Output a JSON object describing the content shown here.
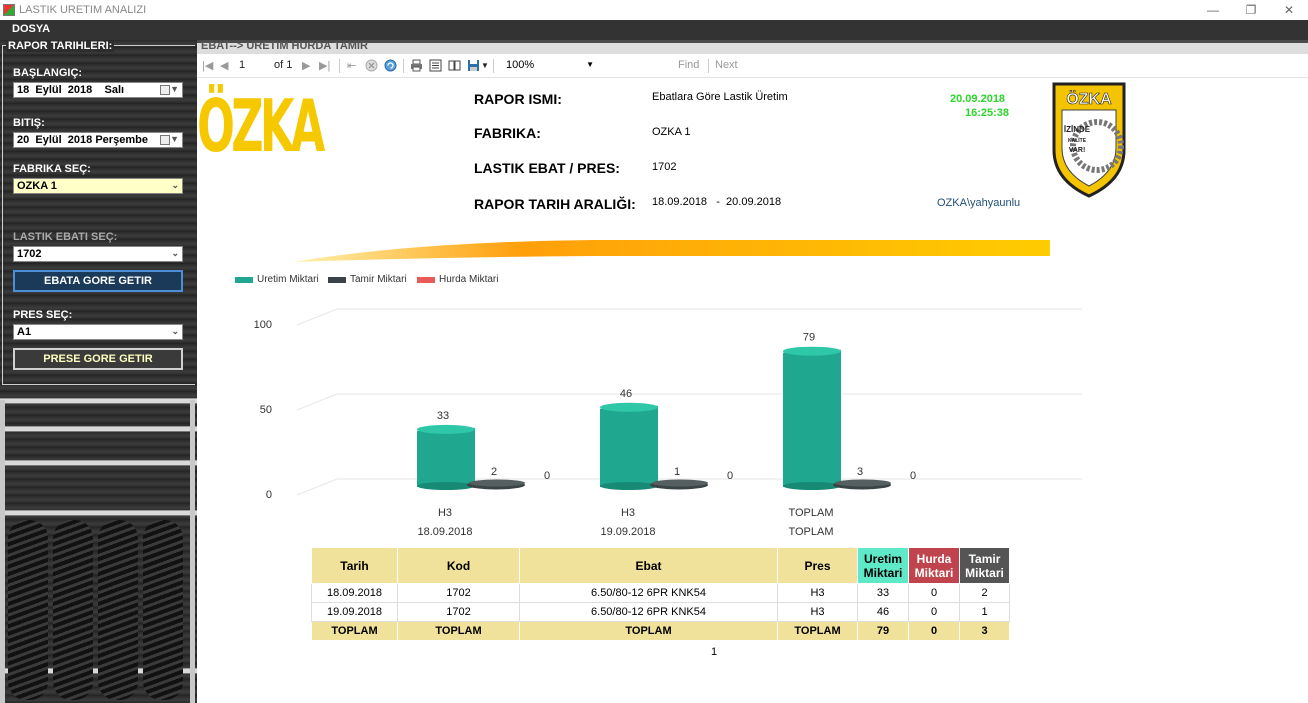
{
  "window": {
    "title": "LASTIK URETIM ANALIZI"
  },
  "menu": {
    "file": "DOSYA"
  },
  "sidebar": {
    "group_title": "RAPOR TARIHLERI:",
    "start_label": "BAŞLANGIÇ:",
    "start_date": {
      "day": "18",
      "month": "Eylül",
      "year": "2018",
      "weekday": "Salı"
    },
    "end_label": "BITIŞ:",
    "end_date": {
      "day": "20",
      "month": "Eylül",
      "year": "2018",
      "weekday": "Perşembe"
    },
    "factory_label": "FABRIKA SEÇ:",
    "factory_value": "OZKA 1",
    "size_label": "LASTIK EBATI SEÇ:",
    "size_value": "1702",
    "size_button": "EBATA GORE GETIR",
    "press_label": "PRES SEÇ:",
    "press_value": "A1",
    "press_button": "PRESE GORE GETIR"
  },
  "viewer": {
    "tab_title": "EBAT--> URETIM HURDA TAMIR",
    "page_current": "1",
    "page_of": "of 1",
    "zoom": "100%",
    "find": "Find",
    "next": "Next"
  },
  "report": {
    "logo_text": "ÖZKA",
    "badge": {
      "brand": "ÖZKA",
      "line1": "İZİNDE",
      "line2": "KALİTE",
      "line3": "VAR!"
    },
    "name_label": "RAPOR ISMI:",
    "name_value": "Ebatlara Göre Lastik Üretim",
    "factory_label": "FABRIKA:",
    "factory_value": "OZKA 1",
    "size_label": "LASTIK EBAT / PRES:",
    "size_value": "1702",
    "range_label": "RAPOR TARIH ARALIĞI:",
    "range_start": "18.09.2018",
    "range_sep": "-",
    "range_end": "20.09.2018",
    "print_date": "20.09.2018",
    "print_time": "16:25:38",
    "user": "OZKA\\yahyaunlu",
    "page_number": "1"
  },
  "colors": {
    "uretim": "#1fa88f",
    "tamir": "#3a4446",
    "hurda": "#e85b57"
  },
  "chart_data": {
    "type": "bar",
    "categories": [
      "H3\n18.09.2018",
      "H3\n19.09.2018",
      "TOPLAM\nTOPLAM"
    ],
    "category_lines": [
      [
        "H3",
        "18.09.2018"
      ],
      [
        "H3",
        "19.09.2018"
      ],
      [
        "TOPLAM",
        "TOPLAM"
      ]
    ],
    "series": [
      {
        "name": "Uretim Miktari",
        "values": [
          33,
          46,
          79
        ]
      },
      {
        "name": "Tamir Miktari",
        "values": [
          2,
          1,
          3
        ]
      },
      {
        "name": "Hurda Miktari",
        "values": [
          0,
          0,
          0
        ]
      }
    ],
    "yticks": [
      "0",
      "50",
      "100"
    ],
    "ylim": [
      0,
      100
    ],
    "legend": "top-left",
    "grid": true
  },
  "table": {
    "headers": {
      "tarih": "Tarih",
      "kod": "Kod",
      "ebat": "Ebat",
      "pres": "Pres",
      "uretim1": "Uretim",
      "uretim2": "Miktari",
      "hurda1": "Hurda",
      "hurda2": "Miktari",
      "tamir1": "Tamir",
      "tamir2": "Miktari"
    },
    "rows": [
      {
        "tarih": "18.09.2018",
        "kod": "1702",
        "ebat": "6.50/80-12 6PR KNK54",
        "pres": "H3",
        "uretim": "33",
        "hurda": "0",
        "tamir": "2"
      },
      {
        "tarih": "19.09.2018",
        "kod": "1702",
        "ebat": "6.50/80-12 6PR KNK54",
        "pres": "H3",
        "uretim": "46",
        "hurda": "0",
        "tamir": "1"
      }
    ],
    "total": {
      "tarih": "TOPLAM",
      "kod": "TOPLAM",
      "ebat": "TOPLAM",
      "pres": "TOPLAM",
      "uretim": "79",
      "hurda": "0",
      "tamir": "3"
    }
  }
}
